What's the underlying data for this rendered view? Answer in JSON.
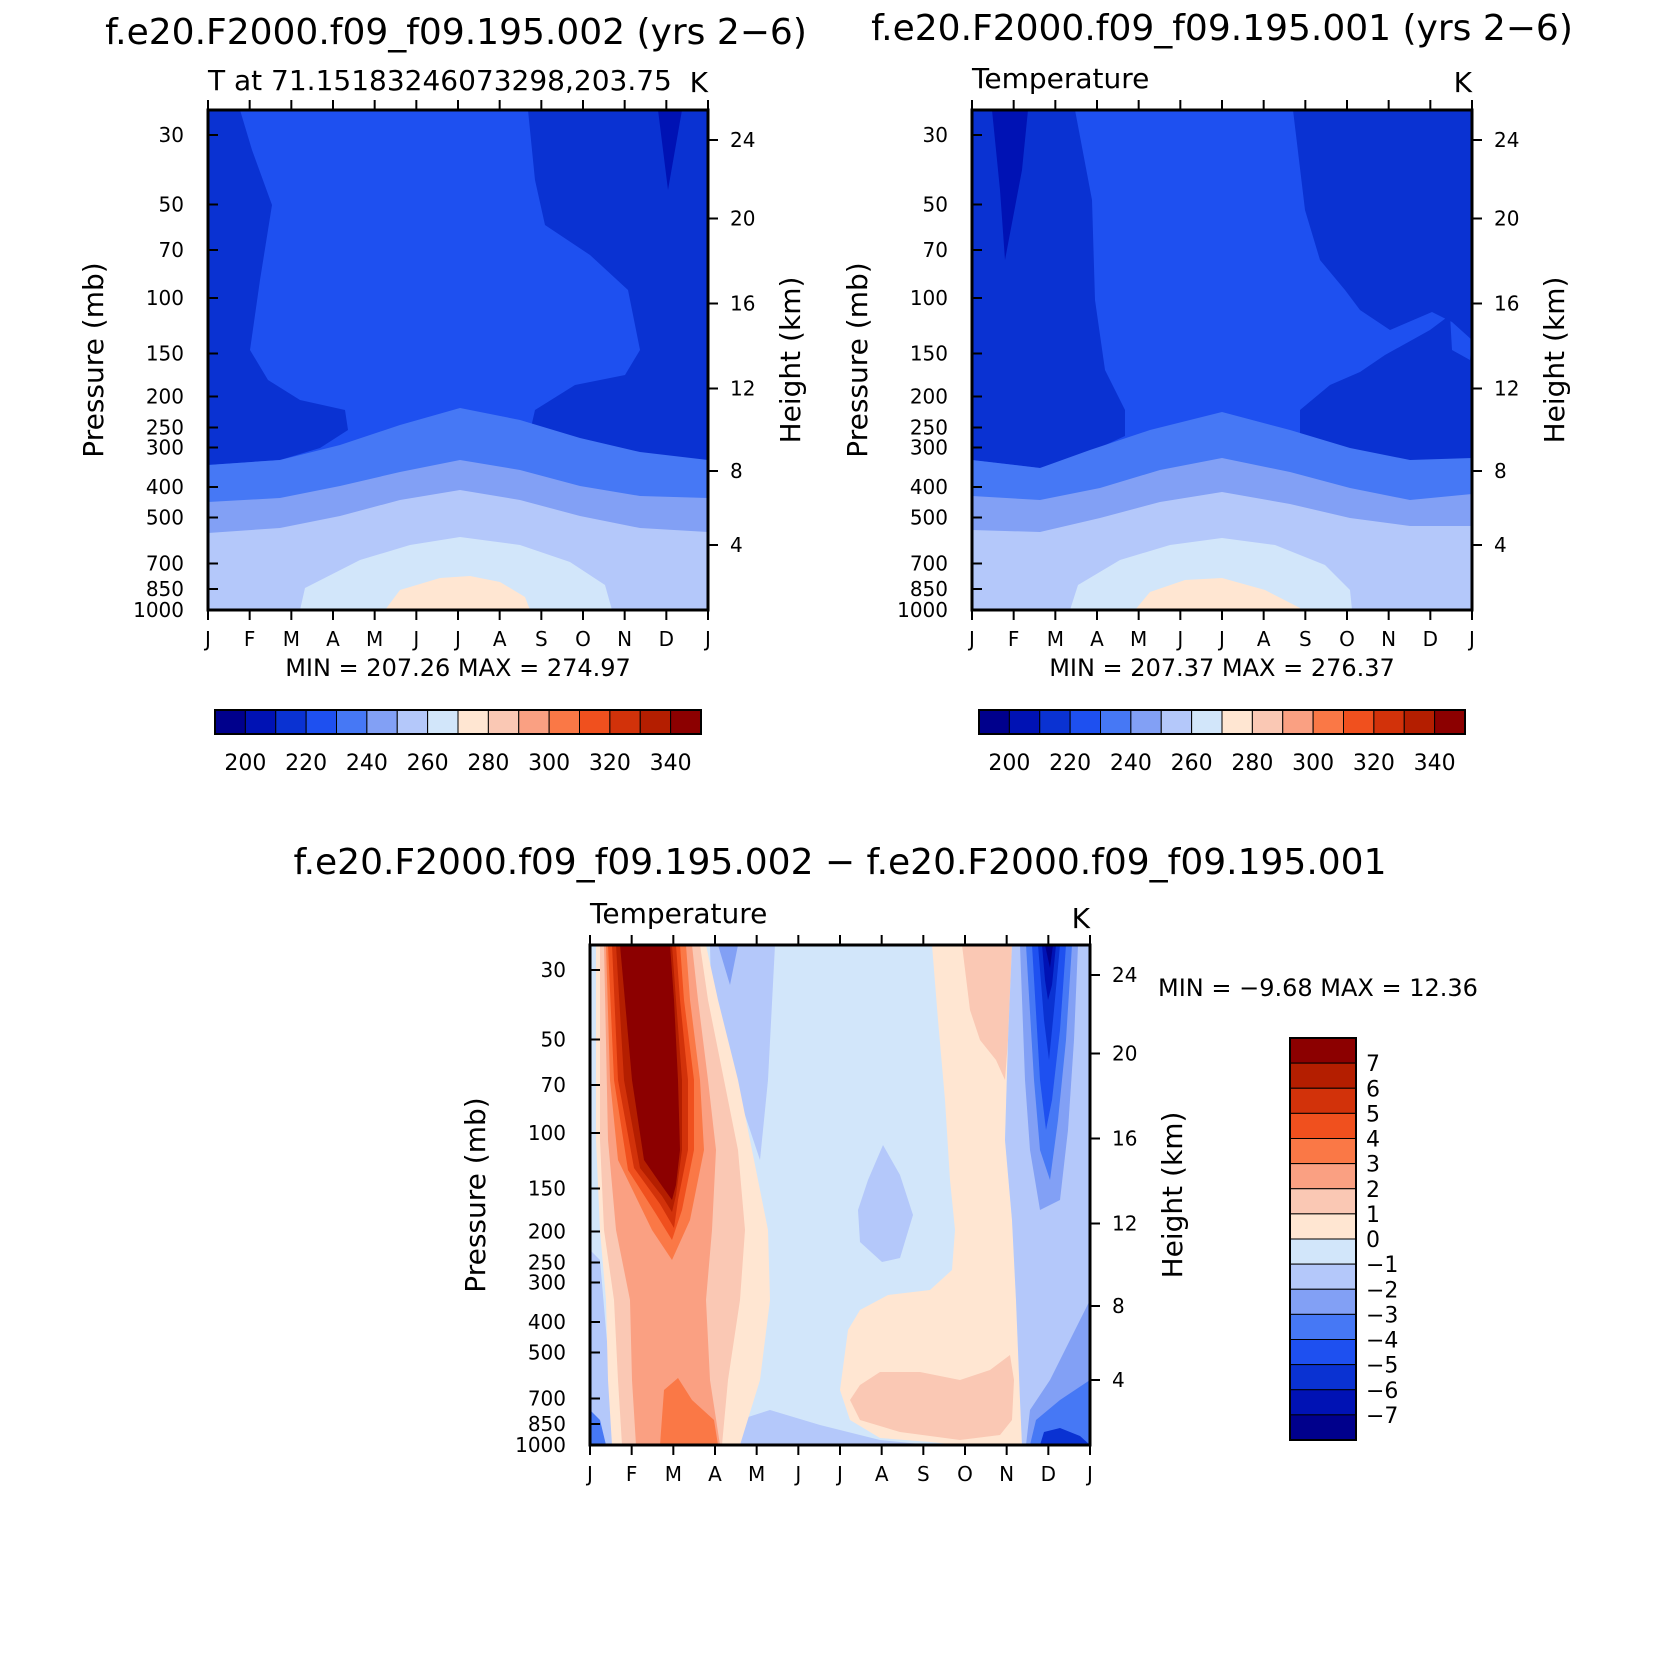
{
  "chart_data": [
    {
      "type": "heatmap",
      "id": "p1",
      "title": "f.e20.F2000.f09_f09.195.002 (yrs 2−6)",
      "subtitle_left": "T at 71.15183246073298,203.75",
      "units": "K",
      "ylabel": "Pressure (mb)",
      "ylabel_right": "Height (km)",
      "months": [
        "J",
        "F",
        "M",
        "A",
        "M",
        "J",
        "J",
        "A",
        "S",
        "O",
        "N",
        "D",
        "J"
      ],
      "pressure_ticks": [
        "30",
        "50",
        "70",
        "100",
        "150",
        "200",
        "250",
        "300",
        "400",
        "500",
        "700",
        "850",
        "1000"
      ],
      "height_ticks": [
        "24",
        "20",
        "16",
        "12",
        "8",
        "4"
      ],
      "min_max": "MIN = 207.26  MAX = 274.97",
      "colorbar_labels": [
        "200",
        "220",
        "240",
        "260",
        "280",
        "300",
        "320",
        "340"
      ],
      "colorbar_colors": [
        "#00008c",
        "#0012b4",
        "#0a32d2",
        "#1e50f0",
        "#4678f5",
        "#82a0f5",
        "#b4c8fa",
        "#d2e6fa",
        "#ffe6d2",
        "#fac8b4",
        "#faa082",
        "#fa7846",
        "#f0501e",
        "#d2320a",
        "#b41e00",
        "#8c0000"
      ]
    },
    {
      "type": "heatmap",
      "id": "p2",
      "title": "f.e20.F2000.f09_f09.195.001 (yrs 2−6)",
      "subtitle_left": "Temperature",
      "units": "K",
      "ylabel": "Pressure (mb)",
      "ylabel_right": "Height (km)",
      "months": [
        "J",
        "F",
        "M",
        "A",
        "M",
        "J",
        "J",
        "A",
        "S",
        "O",
        "N",
        "D",
        "J"
      ],
      "pressure_ticks": [
        "30",
        "50",
        "70",
        "100",
        "150",
        "200",
        "250",
        "300",
        "400",
        "500",
        "700",
        "850",
        "1000"
      ],
      "height_ticks": [
        "24",
        "20",
        "16",
        "12",
        "8",
        "4"
      ],
      "min_max": "MIN = 207.37  MAX = 276.37",
      "colorbar_labels": [
        "200",
        "220",
        "240",
        "260",
        "280",
        "300",
        "320",
        "340"
      ],
      "colorbar_colors": [
        "#00008c",
        "#0012b4",
        "#0a32d2",
        "#1e50f0",
        "#4678f5",
        "#82a0f5",
        "#b4c8fa",
        "#d2e6fa",
        "#ffe6d2",
        "#fac8b4",
        "#faa082",
        "#fa7846",
        "#f0501e",
        "#d2320a",
        "#b41e00",
        "#8c0000"
      ]
    },
    {
      "type": "heatmap",
      "id": "p3",
      "title": "f.e20.F2000.f09_f09.195.002 − f.e20.F2000.f09_f09.195.001",
      "subtitle_left": "Temperature",
      "units": "K",
      "ylabel": "Pressure (mb)",
      "ylabel_right": "Height (km)",
      "months": [
        "J",
        "F",
        "M",
        "A",
        "M",
        "J",
        "J",
        "A",
        "S",
        "O",
        "N",
        "D",
        "J"
      ],
      "pressure_ticks": [
        "30",
        "50",
        "70",
        "100",
        "150",
        "200",
        "250",
        "300",
        "400",
        "500",
        "700",
        "850",
        "1000"
      ],
      "height_ticks": [
        "24",
        "20",
        "16",
        "12",
        "8",
        "4"
      ],
      "min_max": "MIN =   −9.68  MAX =   12.36",
      "colorbar_labels": [
        "7",
        "6",
        "5",
        "4",
        "3",
        "2",
        "1",
        "0",
        "−1",
        "−2",
        "−3",
        "−4",
        "−5",
        "−6",
        "−7"
      ],
      "colorbar_colors": [
        "#8c0000",
        "#b41e00",
        "#d2320a",
        "#f0501e",
        "#fa7846",
        "#faa082",
        "#fac8b4",
        "#ffe6d2",
        "#d2e6fa",
        "#b4c8fa",
        "#82a0f5",
        "#4678f5",
        "#1e50f0",
        "#0a32d2",
        "#0012b4",
        "#00008c"
      ]
    }
  ]
}
